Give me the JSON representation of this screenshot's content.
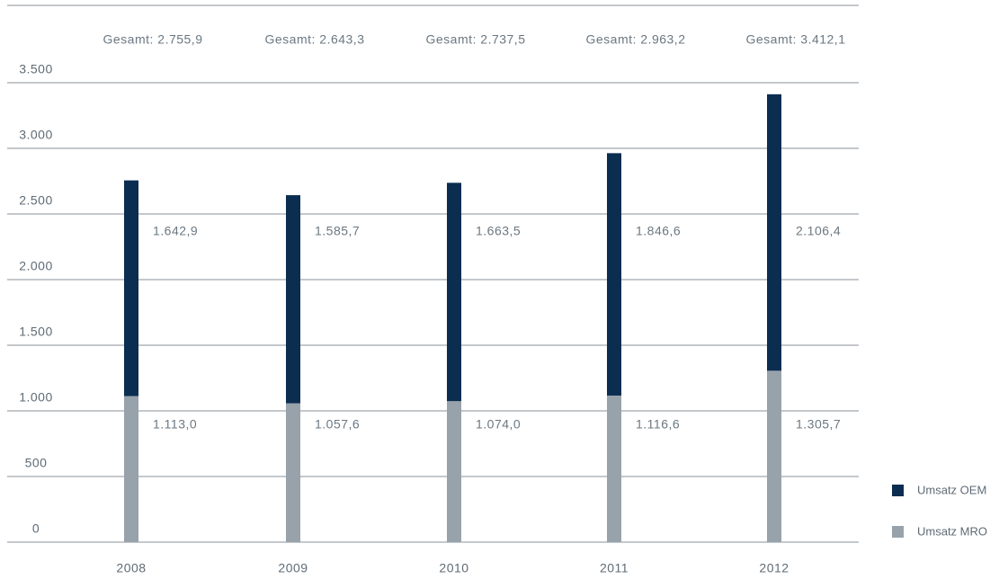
{
  "chart_data": {
    "type": "stacked_bar",
    "categories": [
      "2008",
      "2009",
      "2010",
      "2011",
      "2012"
    ],
    "series": [
      {
        "name": "Umsatz MRO",
        "color": "#98a2ab",
        "values": [
          1113.0,
          1057.6,
          1074.0,
          1116.6,
          1305.7
        ],
        "value_labels": [
          "1.113,0",
          "1.057,6",
          "1.074,0",
          "1.116,6",
          "1.305,7"
        ]
      },
      {
        "name": "Umsatz OEM",
        "color": "#0b2d50",
        "values": [
          1642.9,
          1585.7,
          1663.5,
          1846.6,
          2106.4
        ],
        "value_labels": [
          "1.642,9",
          "1.585,7",
          "1.663,5",
          "1.846,6",
          "2.106,4"
        ]
      }
    ],
    "totals": [
      2755.9,
      2643.3,
      2737.5,
      2963.2,
      3412.1
    ],
    "total_labels": [
      "Gesamt: 2.755,9",
      "Gesamt: 2.643,3",
      "Gesamt: 2.737,5",
      "Gesamt: 2.963,2",
      "Gesamt: 3.412,1"
    ],
    "ylim": [
      0,
      3500
    ],
    "yticks": [
      0,
      {
        "value": 500,
        "label": "500"
      },
      {
        "value": 1000,
        "label": "1.000"
      },
      {
        "value": 1500,
        "label": "1.500"
      },
      {
        "value": 2000,
        "label": "2.000"
      },
      {
        "value": 2500,
        "label": "2.500"
      },
      {
        "value": 3000,
        "label": "3.000"
      },
      {
        "value": 3500,
        "label": "3.500"
      }
    ],
    "grid": true,
    "legend": "lower right"
  }
}
